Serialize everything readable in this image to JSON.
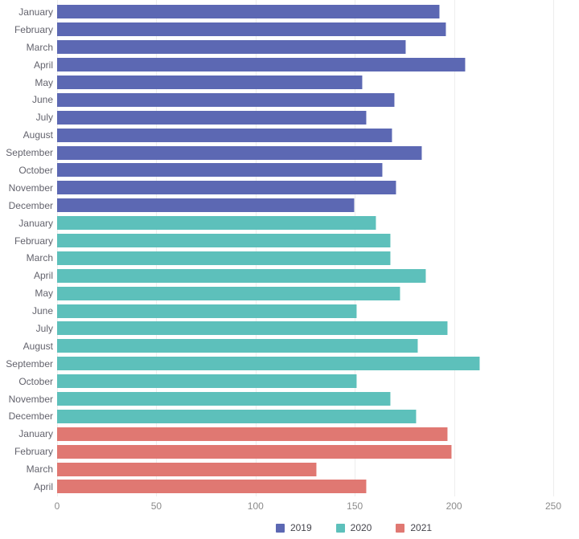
{
  "chart_data": {
    "type": "bar",
    "orientation": "horizontal",
    "title": "",
    "xlabel": "",
    "ylabel": "",
    "xlim": [
      0,
      250
    ],
    "x_ticks": [
      0,
      50,
      100,
      150,
      200,
      250
    ],
    "grid": true,
    "legend_position": "bottom",
    "categories": [
      "January",
      "February",
      "March",
      "April",
      "May",
      "June",
      "July",
      "August",
      "September",
      "October",
      "November",
      "December",
      "January",
      "February",
      "March",
      "April",
      "May",
      "June",
      "July",
      "August",
      "September",
      "October",
      "November",
      "December",
      "January",
      "February",
      "March",
      "April"
    ],
    "series": [
      {
        "name": "2019",
        "color": "#5C68B3",
        "months": [
          "January",
          "February",
          "March",
          "April",
          "May",
          "June",
          "July",
          "August",
          "September",
          "October",
          "November",
          "December"
        ],
        "values": [
          193,
          196,
          176,
          206,
          154,
          170,
          156,
          169,
          184,
          164,
          171,
          150
        ]
      },
      {
        "name": "2020",
        "color": "#5DC0BB",
        "months": [
          "January",
          "February",
          "March",
          "April",
          "May",
          "June",
          "July",
          "August",
          "September",
          "October",
          "November",
          "December"
        ],
        "values": [
          161,
          168,
          168,
          186,
          173,
          151,
          197,
          182,
          213,
          151,
          168,
          181
        ]
      },
      {
        "name": "2021",
        "color": "#E07872",
        "months": [
          "January",
          "February",
          "March",
          "April"
        ],
        "values": [
          197,
          199,
          131,
          156
        ]
      }
    ]
  },
  "legend": {
    "items": [
      {
        "label": "2019",
        "color": "#5C68B3"
      },
      {
        "label": "2020",
        "color": "#5DC0BB"
      },
      {
        "label": "2021",
        "color": "#E07872"
      }
    ]
  },
  "colors": {
    "gridline": "#ededed",
    "y_label_text": "#63636d",
    "x_label_text": "#8b8b8b",
    "legend_text": "#45454d",
    "background": "#ffffff"
  }
}
